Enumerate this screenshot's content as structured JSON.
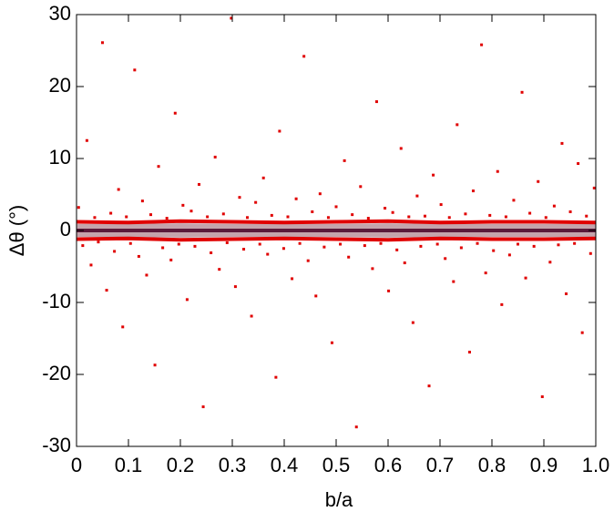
{
  "chart_data": {
    "type": "scatter",
    "xlabel": "b/a",
    "ylabel": "Δθ (°)",
    "xlim": [
      0,
      1
    ],
    "ylim": [
      -30,
      30
    ],
    "xticks": [
      0,
      0.1,
      0.2,
      0.3,
      0.4,
      0.5,
      0.6,
      0.7,
      0.8,
      0.9,
      {
        "value": 1,
        "label": "1.0"
      }
    ],
    "yticks": [
      -30,
      -20,
      -10,
      0,
      10,
      20,
      30
    ],
    "band": {
      "color": "#c4a4ac",
      "x": [
        0,
        0.1,
        0.2,
        0.3,
        0.4,
        0.5,
        0.6,
        0.7,
        0.8,
        0.9,
        1
      ],
      "upper": [
        0.9,
        0.9,
        1.0,
        0.9,
        0.9,
        0.9,
        1.0,
        0.9,
        0.9,
        0.9,
        0.9
      ],
      "lower": [
        -0.9,
        -0.9,
        -1.0,
        -0.9,
        -0.9,
        -0.9,
        -1.0,
        -0.9,
        -0.9,
        -0.9,
        -0.9
      ]
    },
    "series": [
      {
        "mode": "markers",
        "color": "#e00000",
        "x": [
          0.004,
          0.012,
          0.02,
          0.028,
          0.035,
          0.042,
          0.05,
          0.058,
          0.066,
          0.073,
          0.081,
          0.089,
          0.096,
          0.104,
          0.112,
          0.12,
          0.127,
          0.135,
          0.143,
          0.151,
          0.158,
          0.166,
          0.174,
          0.182,
          0.19,
          0.197,
          0.205,
          0.213,
          0.221,
          0.228,
          0.236,
          0.244,
          0.252,
          0.259,
          0.267,
          0.275,
          0.283,
          0.29,
          0.298,
          0.306,
          0.314,
          0.322,
          0.329,
          0.337,
          0.345,
          0.353,
          0.36,
          0.368,
          0.376,
          0.384,
          0.391,
          0.399,
          0.407,
          0.415,
          0.423,
          0.43,
          0.438,
          0.446,
          0.454,
          0.461,
          0.469,
          0.477,
          0.485,
          0.492,
          0.5,
          0.508,
          0.516,
          0.524,
          0.531,
          0.539,
          0.547,
          0.555,
          0.562,
          0.57,
          0.578,
          0.586,
          0.594,
          0.601,
          0.609,
          0.617,
          0.625,
          0.632,
          0.64,
          0.648,
          0.656,
          0.663,
          0.671,
          0.679,
          0.687,
          0.695,
          0.702,
          0.71,
          0.718,
          0.726,
          0.733,
          0.741,
          0.749,
          0.757,
          0.764,
          0.772,
          0.78,
          0.788,
          0.796,
          0.803,
          0.811,
          0.819,
          0.827,
          0.834,
          0.842,
          0.85,
          0.858,
          0.865,
          0.873,
          0.881,
          0.889,
          0.897,
          0.904,
          0.912,
          0.92,
          0.928,
          0.935,
          0.943,
          0.951,
          0.959,
          0.966,
          0.974,
          0.982,
          0.99,
          0.997
        ],
        "y": [
          3.2,
          -2.1,
          12.5,
          -4.8,
          1.8,
          -1.6,
          26.1,
          -8.3,
          2.4,
          -2.9,
          5.7,
          -13.4,
          1.9,
          -1.8,
          22.3,
          -3.6,
          4.1,
          -6.2,
          2.2,
          -18.7,
          8.9,
          -2.4,
          1.7,
          -4.1,
          16.3,
          -1.9,
          3.5,
          -9.6,
          2.7,
          -2.2,
          6.4,
          -24.5,
          1.9,
          -3.1,
          10.2,
          -5.4,
          2.3,
          -1.7,
          29.5,
          -7.8,
          4.6,
          -2.6,
          1.8,
          -11.9,
          3.9,
          -1.9,
          7.3,
          -3.3,
          2.1,
          -20.4,
          13.8,
          -2.5,
          1.9,
          -6.7,
          4.4,
          -1.8,
          24.2,
          -4.2,
          2.6,
          -9.1,
          5.1,
          -2.3,
          1.8,
          -15.6,
          3.3,
          -1.9,
          9.7,
          -3.7,
          2.2,
          -27.3,
          6.1,
          -2.1,
          1.7,
          -5.3,
          17.9,
          -1.8,
          3.1,
          -8.4,
          2.5,
          -2.7,
          11.4,
          -4.5,
          1.9,
          -12.8,
          4.8,
          -2.2,
          2.0,
          -21.6,
          7.7,
          -1.9,
          3.6,
          -3.9,
          1.8,
          -7.1,
          14.7,
          -2.4,
          2.3,
          -16.9,
          5.5,
          -1.8,
          25.8,
          -5.9,
          2.1,
          -2.8,
          8.2,
          -10.3,
          1.9,
          -3.4,
          4.2,
          -1.9,
          19.2,
          -6.6,
          2.4,
          -2.2,
          6.8,
          -23.1,
          1.8,
          -4.4,
          3.4,
          -2.0,
          12.1,
          -8.8,
          2.6,
          -1.8,
          9.3,
          -14.2,
          2.0,
          -3.2,
          5.9
        ]
      },
      {
        "mode": "line",
        "color": "#e00000",
        "x": [
          0,
          0.1,
          0.2,
          0.3,
          0.4,
          0.5,
          0.6,
          0.7,
          0.8,
          0.9,
          1
        ],
        "y": [
          1.2,
          1.1,
          1.3,
          1.2,
          1.1,
          1.2,
          1.3,
          1.1,
          1.2,
          1.2,
          1.1
        ]
      },
      {
        "mode": "line",
        "color": "#e00000",
        "x": [
          0,
          0.1,
          0.2,
          0.3,
          0.4,
          0.5,
          0.6,
          0.7,
          0.8,
          0.9,
          1
        ],
        "y": [
          -1.2,
          -1.1,
          -1.3,
          -1.2,
          -1.1,
          -1.2,
          -1.3,
          -1.1,
          -1.2,
          -1.2,
          -1.1
        ]
      },
      {
        "mode": "line",
        "color": "#5a1a3a",
        "x": [
          0,
          1
        ],
        "y": [
          0,
          0
        ]
      }
    ]
  }
}
